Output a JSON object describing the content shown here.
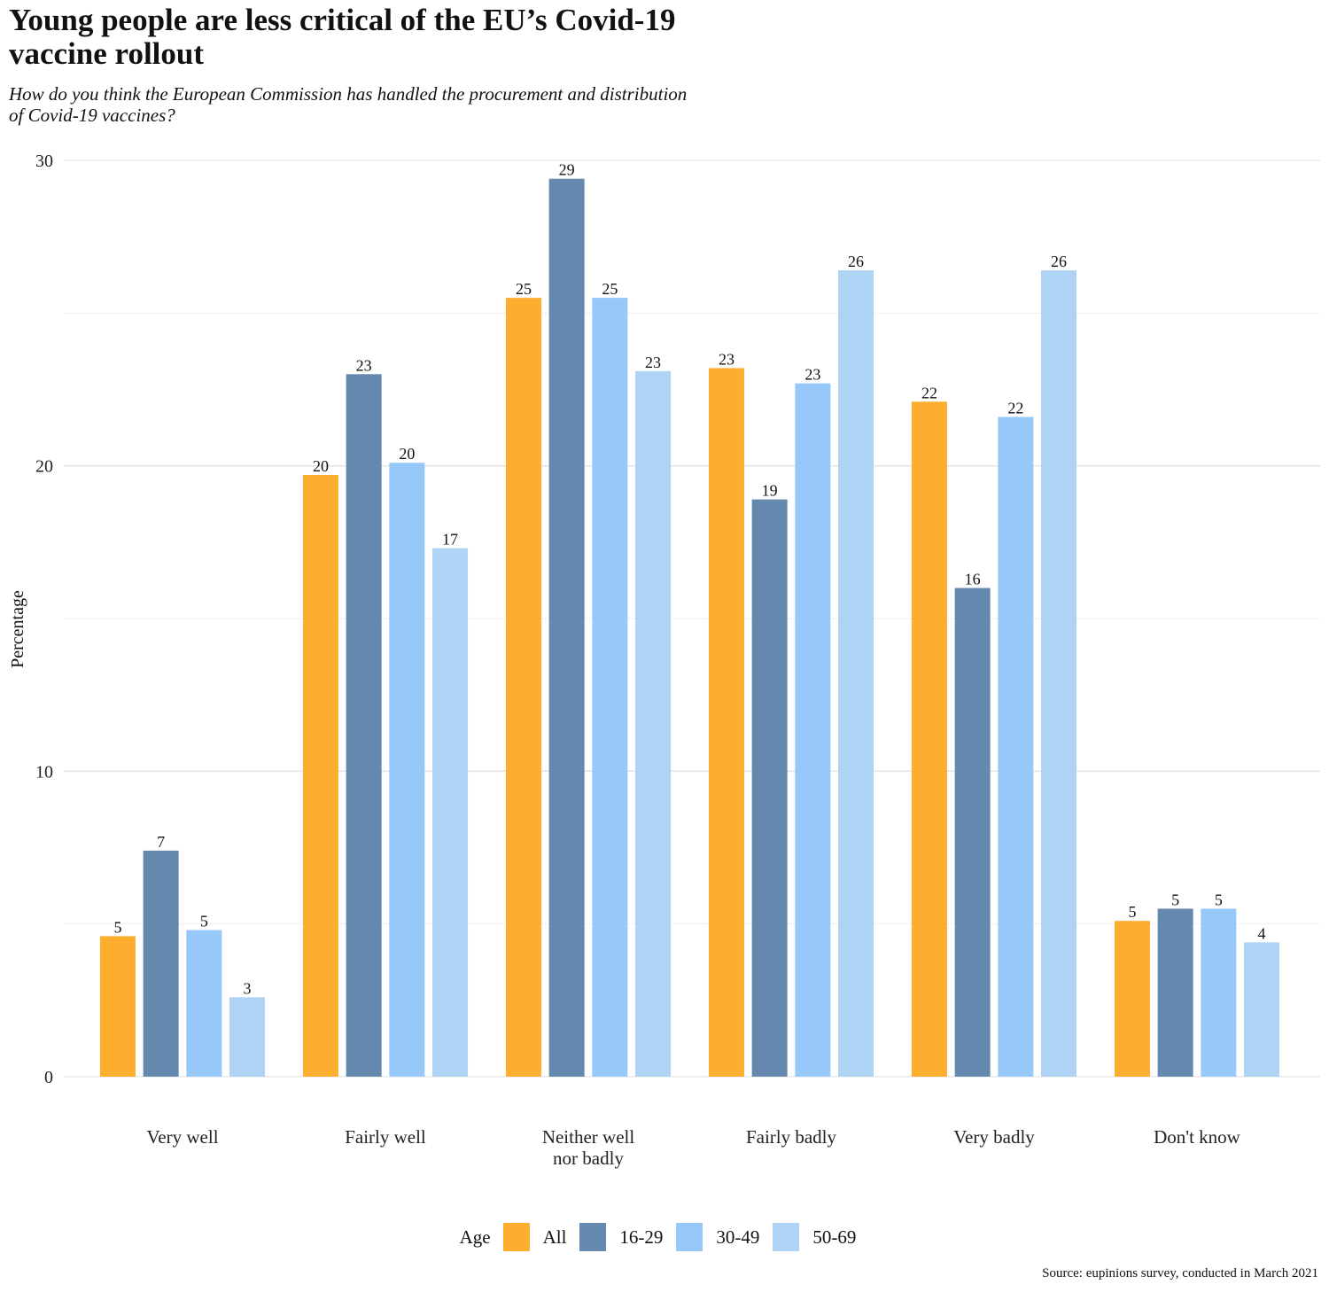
{
  "title": "Young people are less critical of the EU’s Covid-19\n vaccine rollout",
  "subtitle": "How do you think the European Commission has handled the procurement and distribution\n of Covid-19 vaccines?",
  "source": "Source: eupinions survey, conducted in March 2021",
  "legend_title": "Age",
  "chart_data": {
    "type": "bar",
    "title": "Young people are less critical of the EU’s Covid-19 vaccine rollout",
    "xlabel": "",
    "ylabel": "Percentage",
    "ylim": [
      0,
      30
    ],
    "yticks": [
      0,
      10,
      20,
      30
    ],
    "grid": true,
    "legend_position": "bottom",
    "categories": [
      "Very well",
      "Fairly well",
      "Neither well\nnor badly",
      "Fairly badly",
      "Very badly",
      "Don't know"
    ],
    "series": [
      {
        "name": "All",
        "color": "#FDAE2F",
        "values": [
          4.6,
          19.7,
          25.5,
          23.2,
          22.1,
          5.1
        ],
        "labels": [
          "5",
          "20",
          "25",
          "23",
          "22",
          "5"
        ]
      },
      {
        "name": "16-29",
        "color": "#6589AE",
        "values": [
          7.4,
          23.0,
          29.4,
          18.9,
          16.0,
          5.5
        ],
        "labels": [
          "7",
          "23",
          "29",
          "19",
          "16",
          "5"
        ]
      },
      {
        "name": "30-49",
        "color": "#96C8FA",
        "values": [
          4.8,
          20.1,
          25.5,
          22.7,
          21.6,
          5.5
        ],
        "labels": [
          "5",
          "20",
          "25",
          "23",
          "22",
          "5"
        ]
      },
      {
        "name": "50-69",
        "color": "#AFD3F5",
        "values": [
          2.6,
          17.3,
          23.1,
          26.4,
          26.4,
          4.4
        ],
        "labels": [
          "3",
          "17",
          "23",
          "26",
          "26",
          "4"
        ]
      }
    ]
  }
}
